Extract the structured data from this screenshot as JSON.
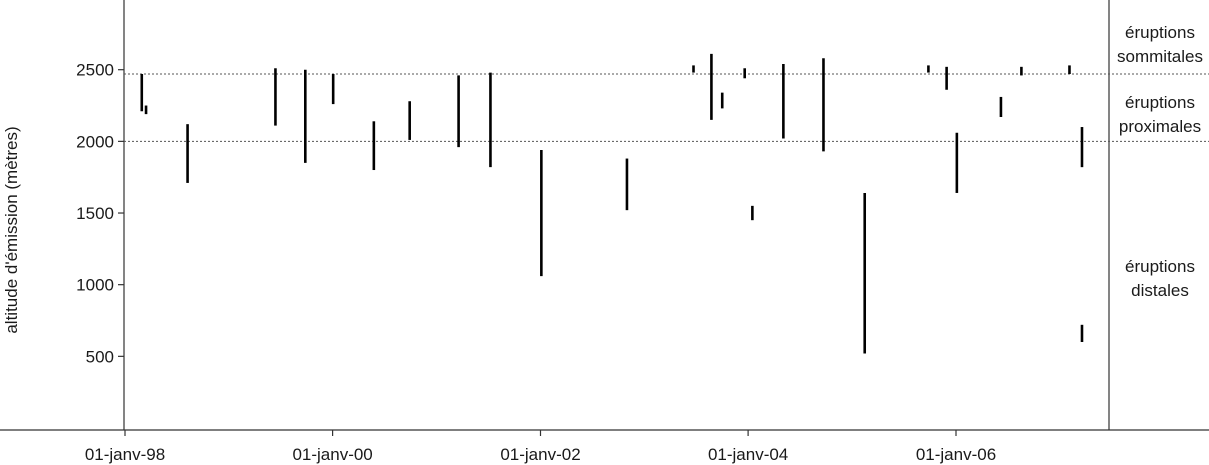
{
  "chart_data": {
    "type": "bar",
    "subtype": "floating-range (vertical segments)",
    "title": "",
    "ylabel": "altitude d'émission (mètres)",
    "xlabel": "",
    "ylim": [
      0,
      2850
    ],
    "x_range": [
      "1997-07-01",
      "2007-10-01"
    ],
    "yticks": [
      500,
      1000,
      1500,
      2000,
      2500
    ],
    "xticks": [
      {
        "date": "1998-01-01",
        "label": "01-janv-98"
      },
      {
        "date": "2000-01-01",
        "label": "01-janv-00"
      },
      {
        "date": "2002-01-01",
        "label": "01-janv-02"
      },
      {
        "date": "2004-01-01",
        "label": "01-janv-04"
      },
      {
        "date": "2006-01-01",
        "label": "01-janv-06"
      }
    ],
    "grid": false,
    "reference_lines": [
      {
        "y": 2470,
        "style": "dotted"
      },
      {
        "y": 2000,
        "style": "dotted"
      }
    ],
    "zones": [
      {
        "label_lines": [
          "éruptions",
          "sommitales"
        ]
      },
      {
        "label_lines": [
          "éruptions",
          "proximales"
        ]
      },
      {
        "label_lines": [
          "éruptions",
          "distales"
        ]
      }
    ],
    "series": [
      {
        "segments": [
          {
            "date": "1998-03-01",
            "y_low": 2210,
            "y_high": 2470
          },
          {
            "date": "1998-03-16",
            "y_low": 2190,
            "y_high": 2250
          },
          {
            "date": "1998-08-09",
            "y_low": 1710,
            "y_high": 2120
          },
          {
            "date": "1999-06-14",
            "y_low": 2110,
            "y_high": 2510
          },
          {
            "date": "1999-09-27",
            "y_low": 1850,
            "y_high": 2500
          },
          {
            "date": "2000-01-03",
            "y_low": 2260,
            "y_high": 2470
          },
          {
            "date": "2000-05-25",
            "y_low": 1800,
            "y_high": 2140
          },
          {
            "date": "2000-09-28",
            "y_low": 2010,
            "y_high": 2280
          },
          {
            "date": "2001-03-19",
            "y_low": 1960,
            "y_high": 2460
          },
          {
            "date": "2001-07-09",
            "y_low": 1820,
            "y_high": 2480
          },
          {
            "date": "2002-01-04",
            "y_low": 1060,
            "y_high": 1940
          },
          {
            "date": "2002-11-01",
            "y_low": 1520,
            "y_high": 1880
          },
          {
            "date": "2003-06-23",
            "y_low": 2480,
            "y_high": 2530
          },
          {
            "date": "2003-08-25",
            "y_low": 2150,
            "y_high": 2610
          },
          {
            "date": "2003-10-02",
            "y_low": 2230,
            "y_high": 2340
          },
          {
            "date": "2003-12-20",
            "y_low": 2440,
            "y_high": 2510
          },
          {
            "date": "2004-01-16",
            "y_low": 1450,
            "y_high": 1550
          },
          {
            "date": "2004-05-04",
            "y_low": 2020,
            "y_high": 2540
          },
          {
            "date": "2004-09-22",
            "y_low": 1930,
            "y_high": 2580
          },
          {
            "date": "2005-02-14",
            "y_low": 520,
            "y_high": 1640
          },
          {
            "date": "2005-09-26",
            "y_low": 2480,
            "y_high": 2530
          },
          {
            "date": "2005-11-29",
            "y_low": 2360,
            "y_high": 2520
          },
          {
            "date": "2006-01-04",
            "y_low": 1640,
            "y_high": 2060
          },
          {
            "date": "2006-06-08",
            "y_low": 2170,
            "y_high": 2310
          },
          {
            "date": "2006-08-19",
            "y_low": 2460,
            "y_high": 2520
          },
          {
            "date": "2007-02-04",
            "y_low": 2470,
            "y_high": 2530
          },
          {
            "date": "2007-03-20",
            "y_low": 1820,
            "y_high": 2100
          },
          {
            "date": "2007-03-20",
            "y_low": 600,
            "y_high": 720
          }
        ]
      }
    ]
  }
}
